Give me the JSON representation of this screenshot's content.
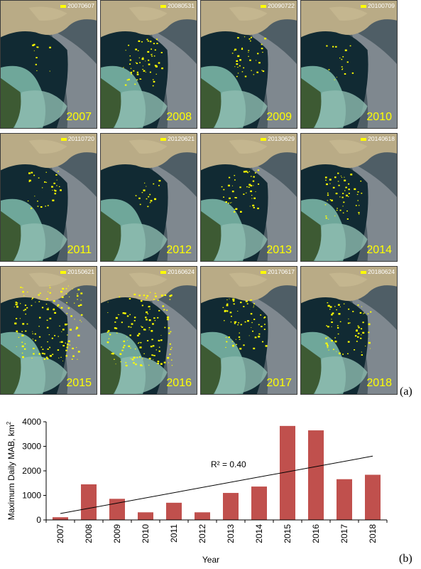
{
  "panels": {
    "a_label": "(a)",
    "b_label": "(b)"
  },
  "tiles": [
    {
      "date": "20070607",
      "year": "2007",
      "level": 0.03
    },
    {
      "date": "20080531",
      "year": "2008",
      "level": 0.38
    },
    {
      "date": "20090722",
      "year": "2009",
      "level": 0.23
    },
    {
      "date": "20100709",
      "year": "2010",
      "level": 0.08
    },
    {
      "date": "20110720",
      "year": "2011",
      "level": 0.18
    },
    {
      "date": "20120621",
      "year": "2012",
      "level": 0.08
    },
    {
      "date": "20130629",
      "year": "2013",
      "level": 0.29
    },
    {
      "date": "20140618",
      "year": "2014",
      "level": 0.35
    },
    {
      "date": "20150621",
      "year": "2015",
      "level": 1.0
    },
    {
      "date": "20160624",
      "year": "2016",
      "level": 0.95
    },
    {
      "date": "20170617",
      "year": "2017",
      "level": 0.43
    },
    {
      "date": "20180624",
      "year": "2018",
      "level": 0.48
    }
  ],
  "colors": {
    "bar": "#c0504d",
    "algae": "#ffff00",
    "trend": "#000000"
  },
  "chart_data": {
    "type": "bar",
    "categories": [
      "2007",
      "2008",
      "2009",
      "2010",
      "2011",
      "2012",
      "2013",
      "2014",
      "2015",
      "2016",
      "2017",
      "2018"
    ],
    "values": [
      110,
      1450,
      860,
      310,
      700,
      310,
      1100,
      1360,
      3830,
      3650,
      1660,
      1840
    ],
    "xlabel": "Year",
    "ylabel": "Maximum Daily MAB, km",
    "ylabel_sup": "2",
    "ylim": [
      0,
      4000
    ],
    "yticks": [
      "0",
      "1000",
      "2000",
      "3000",
      "4000"
    ],
    "trendline": {
      "x_start": "2007",
      "x_end": "2018",
      "y_start": 260,
      "y_end": 2600
    },
    "annotation": {
      "text": "R² = 0.40",
      "x": "2012",
      "y": 2150
    },
    "grid": false,
    "legend": false
  }
}
